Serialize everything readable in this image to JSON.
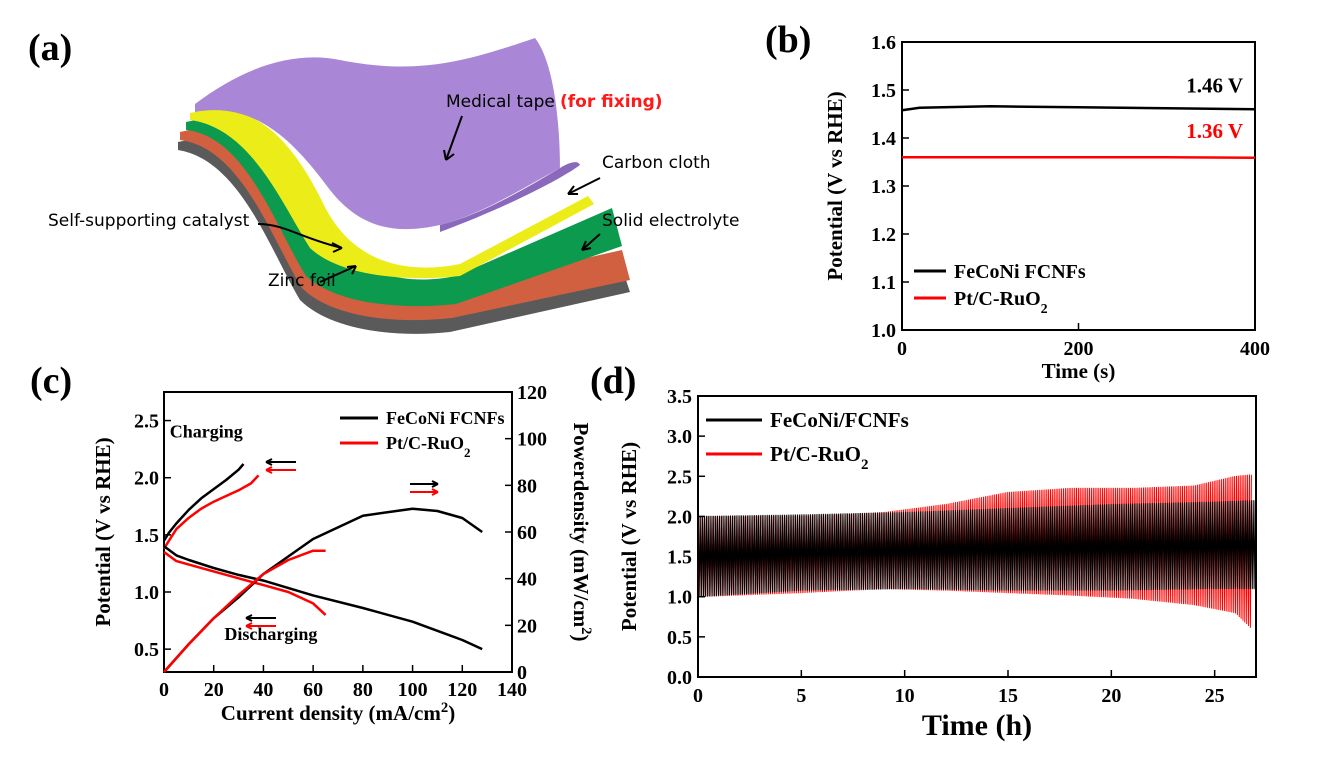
{
  "panel_labels": {
    "a": "(a)",
    "b": "(b)",
    "c": "(c)",
    "d": "(d)"
  },
  "schematic": {
    "labels": {
      "medical_tape": "Medical tape",
      "for_fixing": "(for fixing)",
      "carbon_cloth": "Carbon cloth",
      "self_supporting": "Self-supporting catalyst",
      "solid_electrolyte": "Solid electrolyte",
      "zinc_foil": "Zinc foil"
    },
    "colors": {
      "tape": "#a987d6",
      "tape_dark": "#8a68bb",
      "carbon": "#ecec18",
      "catalyst": "#1e9448",
      "electrolyte": "#0b9a4e",
      "zinc": "#d0603f",
      "base": "#555555",
      "label_red": "#ff1a1a"
    }
  },
  "chart_data": [
    {
      "id": "b",
      "type": "line",
      "xlabel": "Time (s)",
      "ylabel": "Potential (V vs RHE)",
      "xlim": [
        0,
        400
      ],
      "ylim": [
        1.0,
        1.6
      ],
      "xticks": [
        "0",
        "200",
        "400"
      ],
      "yticks": [
        "1.0",
        "1.1",
        "1.2",
        "1.3",
        "1.4",
        "1.5",
        "1.6"
      ],
      "series": [
        {
          "name": "FeCoNi FCNFs",
          "color": "#000000",
          "x": [
            0,
            20,
            100,
            200,
            300,
            400
          ],
          "y": [
            1.458,
            1.463,
            1.466,
            1.464,
            1.462,
            1.46
          ]
        },
        {
          "name": "Pt/C-RuO2",
          "color": "#ff0000",
          "x": [
            0,
            100,
            200,
            300,
            400
          ],
          "y": [
            1.36,
            1.36,
            1.36,
            1.36,
            1.359
          ]
        }
      ],
      "annotations": [
        {
          "text": "1.46 V",
          "color": "#000000",
          "x": 360,
          "y": 1.495
        },
        {
          "text": "1.36 V",
          "color": "#ff0000",
          "x": 360,
          "y": 1.4
        }
      ],
      "legend": "bottom-left"
    },
    {
      "id": "c",
      "type": "line",
      "xlabel": "Current density (mA/cm",
      "xlabel_sup": "2",
      "xlabel_end": ")",
      "ylabel": "Potential (V vs RHE)",
      "y2label": "Powerdensity (mW/cm",
      "y2label_sup": "2",
      "y2label_end": ")",
      "xlim": [
        0,
        140
      ],
      "ylim": [
        0.3,
        2.75
      ],
      "y2lim": [
        0,
        120
      ],
      "xticks": [
        "0",
        "20",
        "40",
        "60",
        "80",
        "100",
        "120",
        "140"
      ],
      "yticks": [
        "0.5",
        "1.0",
        "1.5",
        "2.0",
        "2.5"
      ],
      "y2ticks": [
        "0",
        "20",
        "40",
        "60",
        "80",
        "100",
        "120"
      ],
      "annotations": [
        {
          "text": "Charging",
          "x": 17,
          "y": 2.35
        },
        {
          "text": "Discharging",
          "x": 43,
          "y": 0.58
        }
      ],
      "series": [
        {
          "name": "FeCoNi FCNFs",
          "color": "#000000",
          "axis": "left",
          "role": "charge",
          "x": [
            0,
            2,
            5,
            10,
            15,
            20,
            25,
            30,
            32
          ],
          "y": [
            1.45,
            1.52,
            1.6,
            1.72,
            1.82,
            1.9,
            1.98,
            2.07,
            2.12
          ]
        },
        {
          "name": "Pt/C-RuO2",
          "color": "#ff0000",
          "axis": "left",
          "role": "charge",
          "x": [
            0,
            2,
            5,
            10,
            15,
            20,
            25,
            30,
            35,
            38
          ],
          "y": [
            1.38,
            1.45,
            1.55,
            1.65,
            1.73,
            1.79,
            1.84,
            1.89,
            1.95,
            2.02
          ]
        },
        {
          "name": "FeCoNi FCNFs",
          "color": "#000000",
          "axis": "left",
          "role": "discharge",
          "x": [
            0,
            5,
            10,
            20,
            30,
            40,
            60,
            80,
            100,
            120,
            128
          ],
          "y": [
            1.4,
            1.32,
            1.28,
            1.21,
            1.15,
            1.1,
            0.97,
            0.86,
            0.74,
            0.58,
            0.5
          ]
        },
        {
          "name": "Pt/C-RuO2",
          "color": "#ff0000",
          "axis": "left",
          "role": "discharge",
          "x": [
            0,
            5,
            10,
            20,
            30,
            40,
            50,
            60,
            65
          ],
          "y": [
            1.35,
            1.27,
            1.24,
            1.18,
            1.12,
            1.06,
            1.0,
            0.9,
            0.8
          ]
        },
        {
          "name": "FeCoNi FCNFs",
          "color": "#000000",
          "axis": "right",
          "role": "power",
          "x": [
            0,
            10,
            20,
            30,
            40,
            60,
            80,
            100,
            110,
            120,
            128
          ],
          "y": [
            0,
            12,
            23,
            32,
            42,
            57,
            67,
            70,
            69,
            66,
            60
          ]
        },
        {
          "name": "Pt/C-RuO2",
          "color": "#ff0000",
          "axis": "right",
          "role": "power",
          "x": [
            0,
            10,
            20,
            30,
            40,
            50,
            60,
            65
          ],
          "y": [
            0,
            12,
            23,
            33,
            42,
            48,
            52,
            52
          ]
        }
      ],
      "legend": "top-right"
    },
    {
      "id": "d",
      "type": "line",
      "xlabel": "Time (h)",
      "ylabel": "Potential (V vs RHE)",
      "xlim": [
        0,
        27
      ],
      "ylim": [
        0,
        3.5
      ],
      "xticks": [
        "0",
        "5",
        "10",
        "15",
        "20",
        "25"
      ],
      "yticks": [
        "0.0",
        "0.5",
        "1.0",
        "1.5",
        "2.0",
        "2.5",
        "3.0",
        "3.5"
      ],
      "series": [
        {
          "name": "FeCoNi/FCNFs",
          "color": "#000000",
          "x": [
            0,
            5,
            10,
            15,
            20,
            25,
            27
          ],
          "upper": [
            2.0,
            2.02,
            2.05,
            2.1,
            2.15,
            2.18,
            2.2
          ],
          "lower": [
            1.0,
            1.08,
            1.1,
            1.08,
            1.08,
            1.1,
            1.1
          ]
        },
        {
          "name": "Pt/C-RuO2",
          "color": "#ff0000",
          "x": [
            0,
            5,
            9,
            12,
            15,
            18,
            21,
            24,
            26,
            26.8
          ],
          "upper": [
            2.0,
            2.0,
            2.05,
            2.15,
            2.3,
            2.35,
            2.35,
            2.38,
            2.5,
            2.52
          ],
          "lower": [
            1.0,
            1.05,
            1.1,
            1.08,
            1.05,
            1.02,
            0.98,
            0.9,
            0.8,
            0.6
          ]
        }
      ],
      "legend": "top-left"
    }
  ]
}
